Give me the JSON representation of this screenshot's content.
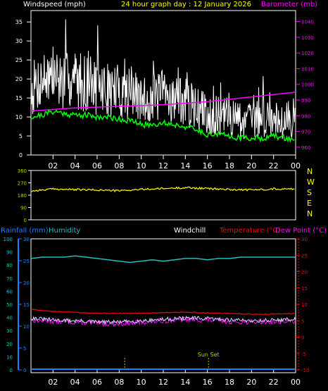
{
  "header": {
    "left_label": "Windspeed (mph)",
    "center_label": "24 hour graph day : 12 January 2026",
    "right_label": "Barometer (mb)"
  },
  "bottom_header": {
    "rainfall": "Rainfall (mm)",
    "humidity": "Humidity",
    "windchill": "Windchill",
    "temperature": "Temperature (°C)",
    "dewpoint": "Dew Point (°C)"
  },
  "colors": {
    "background": "#000000",
    "axis": "#ffffff",
    "windspeed": "#ffffff",
    "windavg": "#00ff00",
    "barometer": "#ff00ff",
    "direction": "#ffff00",
    "rain": "#1e7fff",
    "humidity": "#20c0c0",
    "windchill": "#ff00ff",
    "temperature": "#ff0000",
    "dewpoint": "#ffffff",
    "marker": "#c8c800"
  },
  "chart_data": [
    {
      "type": "line",
      "title": "24 hour graph day : 12 January 2026",
      "xticks": [
        "02",
        "04",
        "06",
        "08",
        "10",
        "12",
        "14",
        "16",
        "18",
        "20",
        "22",
        "00"
      ],
      "x_range_hours": [
        0,
        24
      ],
      "y_left": {
        "label": "Windspeed (mph)",
        "ticks": [
          0,
          5,
          10,
          15,
          20,
          25,
          30,
          35
        ],
        "range": [
          0,
          38
        ]
      },
      "y_right": {
        "label": "Barometer (mb)",
        "ticks": [
          960,
          970,
          980,
          990,
          1000,
          1010,
          1020,
          1030,
          1040
        ],
        "range": [
          955,
          1047
        ]
      },
      "series": [
        {
          "name": "Windspeed (mph)",
          "axis": "left",
          "style": "noisy-white",
          "x": [
            0,
            1,
            2,
            3,
            4,
            5,
            6,
            7,
            8,
            9,
            10,
            11,
            12,
            13,
            14,
            15,
            16,
            17,
            18,
            19,
            20,
            21,
            22,
            23,
            24
          ],
          "y": [
            17,
            20,
            21,
            19,
            20,
            19,
            18,
            17,
            17,
            16,
            14,
            15,
            16,
            15,
            14,
            12,
            11,
            10,
            10,
            9,
            9,
            10,
            10,
            9,
            10
          ]
        },
        {
          "name": "Barometer (mb)",
          "axis": "right",
          "x": [
            0,
            4,
            8,
            12,
            16,
            20,
            24
          ],
          "y": [
            983,
            985,
            986,
            987,
            989,
            992,
            995
          ]
        },
        {
          "name": "Average windspeed (mph)",
          "axis": "left",
          "x": [
            0,
            1,
            2,
            3,
            4,
            5,
            6,
            7,
            8,
            9,
            10,
            11,
            12,
            13,
            14,
            15,
            16,
            17,
            18,
            19,
            20,
            21,
            22,
            23,
            24
          ],
          "y": [
            10,
            10.5,
            11.5,
            11,
            10.5,
            10.5,
            10,
            10,
            9.5,
            9,
            8,
            8,
            8.5,
            8,
            7.5,
            6.5,
            5.5,
            5.5,
            5,
            4.5,
            4.5,
            4.5,
            5,
            4.5,
            4
          ]
        }
      ]
    },
    {
      "type": "line",
      "y_tick_labels": [
        "360",
        "270",
        "180",
        "90",
        "0"
      ],
      "y_range": [
        0,
        360
      ],
      "compass_labels": [
        "N",
        "W",
        "S",
        "E",
        "N"
      ],
      "series": [
        {
          "name": "Wind direction",
          "x": [
            0,
            2,
            4,
            6,
            8,
            10,
            12,
            14,
            16,
            18,
            20,
            22,
            24
          ],
          "y": [
            210,
            225,
            220,
            218,
            212,
            222,
            228,
            235,
            228,
            222,
            218,
            226,
            225
          ]
        }
      ]
    },
    {
      "type": "line",
      "xticks": [
        "02",
        "04",
        "06",
        "08",
        "10",
        "12",
        "14",
        "16",
        "18",
        "20",
        "22",
        "00"
      ],
      "x_range_hours": [
        0,
        24
      ],
      "humidity_axis": {
        "label": "Humidity",
        "ticks": [
          0,
          10,
          20,
          30,
          40,
          50,
          60,
          70,
          80,
          90,
          100
        ],
        "range": [
          0,
          100
        ]
      },
      "rain_axis": {
        "label": "Rainfall (mm)",
        "ticks": [
          0,
          5,
          10,
          15,
          20,
          25,
          30
        ],
        "range": [
          0,
          30
        ]
      },
      "temp_axis": {
        "label": "Temperature (°C)",
        "ticks": [
          -10,
          -5,
          0,
          5,
          10,
          15,
          20,
          25,
          30
        ],
        "range": [
          -10,
          30
        ]
      },
      "markers": [
        {
          "label": "",
          "x": 8.5
        },
        {
          "label": "Sun Set",
          "x": 16.1
        }
      ],
      "series": [
        {
          "name": "Humidity",
          "axis": "humidity",
          "x": [
            0,
            1,
            2,
            3,
            4,
            5,
            6,
            7,
            8,
            9,
            10,
            11,
            12,
            13,
            14,
            15,
            16,
            17,
            18,
            19,
            20,
            21,
            22,
            23,
            24
          ],
          "y": [
            85,
            86,
            86,
            86,
            87,
            86,
            85,
            84,
            83,
            82,
            83,
            84,
            83,
            84,
            85,
            85,
            84,
            85,
            85,
            86,
            86,
            86,
            86,
            86,
            86
          ]
        },
        {
          "name": "Temperature",
          "axis": "temp",
          "x": [
            0,
            2,
            4,
            6,
            8,
            10,
            12,
            14,
            16,
            18,
            20,
            22,
            24
          ],
          "y": [
            8.5,
            7.8,
            7.6,
            7.3,
            7.2,
            7.3,
            7.5,
            7.6,
            7.4,
            7.2,
            7.0,
            7.0,
            7.2
          ]
        },
        {
          "name": "Dew Point",
          "axis": "temp",
          "x": [
            0,
            2,
            4,
            6,
            8,
            10,
            12,
            14,
            16,
            18,
            20,
            22,
            24
          ],
          "y": [
            5.8,
            5.2,
            5.0,
            4.6,
            4.6,
            5.0,
            5.4,
            5.8,
            5.6,
            5.3,
            5.0,
            5.2,
            5.4
          ]
        },
        {
          "name": "Windchill",
          "axis": "temp",
          "x": [
            0,
            2,
            4,
            6,
            8,
            10,
            12,
            14,
            16,
            18,
            20,
            22,
            24
          ],
          "y": [
            5.2,
            4.8,
            4.6,
            4.2,
            4.1,
            4.5,
            5.0,
            5.4,
            5.2,
            4.8,
            4.6,
            4.7,
            4.9
          ]
        },
        {
          "name": "Rainfall",
          "axis": "rain",
          "x": [
            0,
            24
          ],
          "y": [
            0,
            0
          ]
        }
      ]
    }
  ]
}
